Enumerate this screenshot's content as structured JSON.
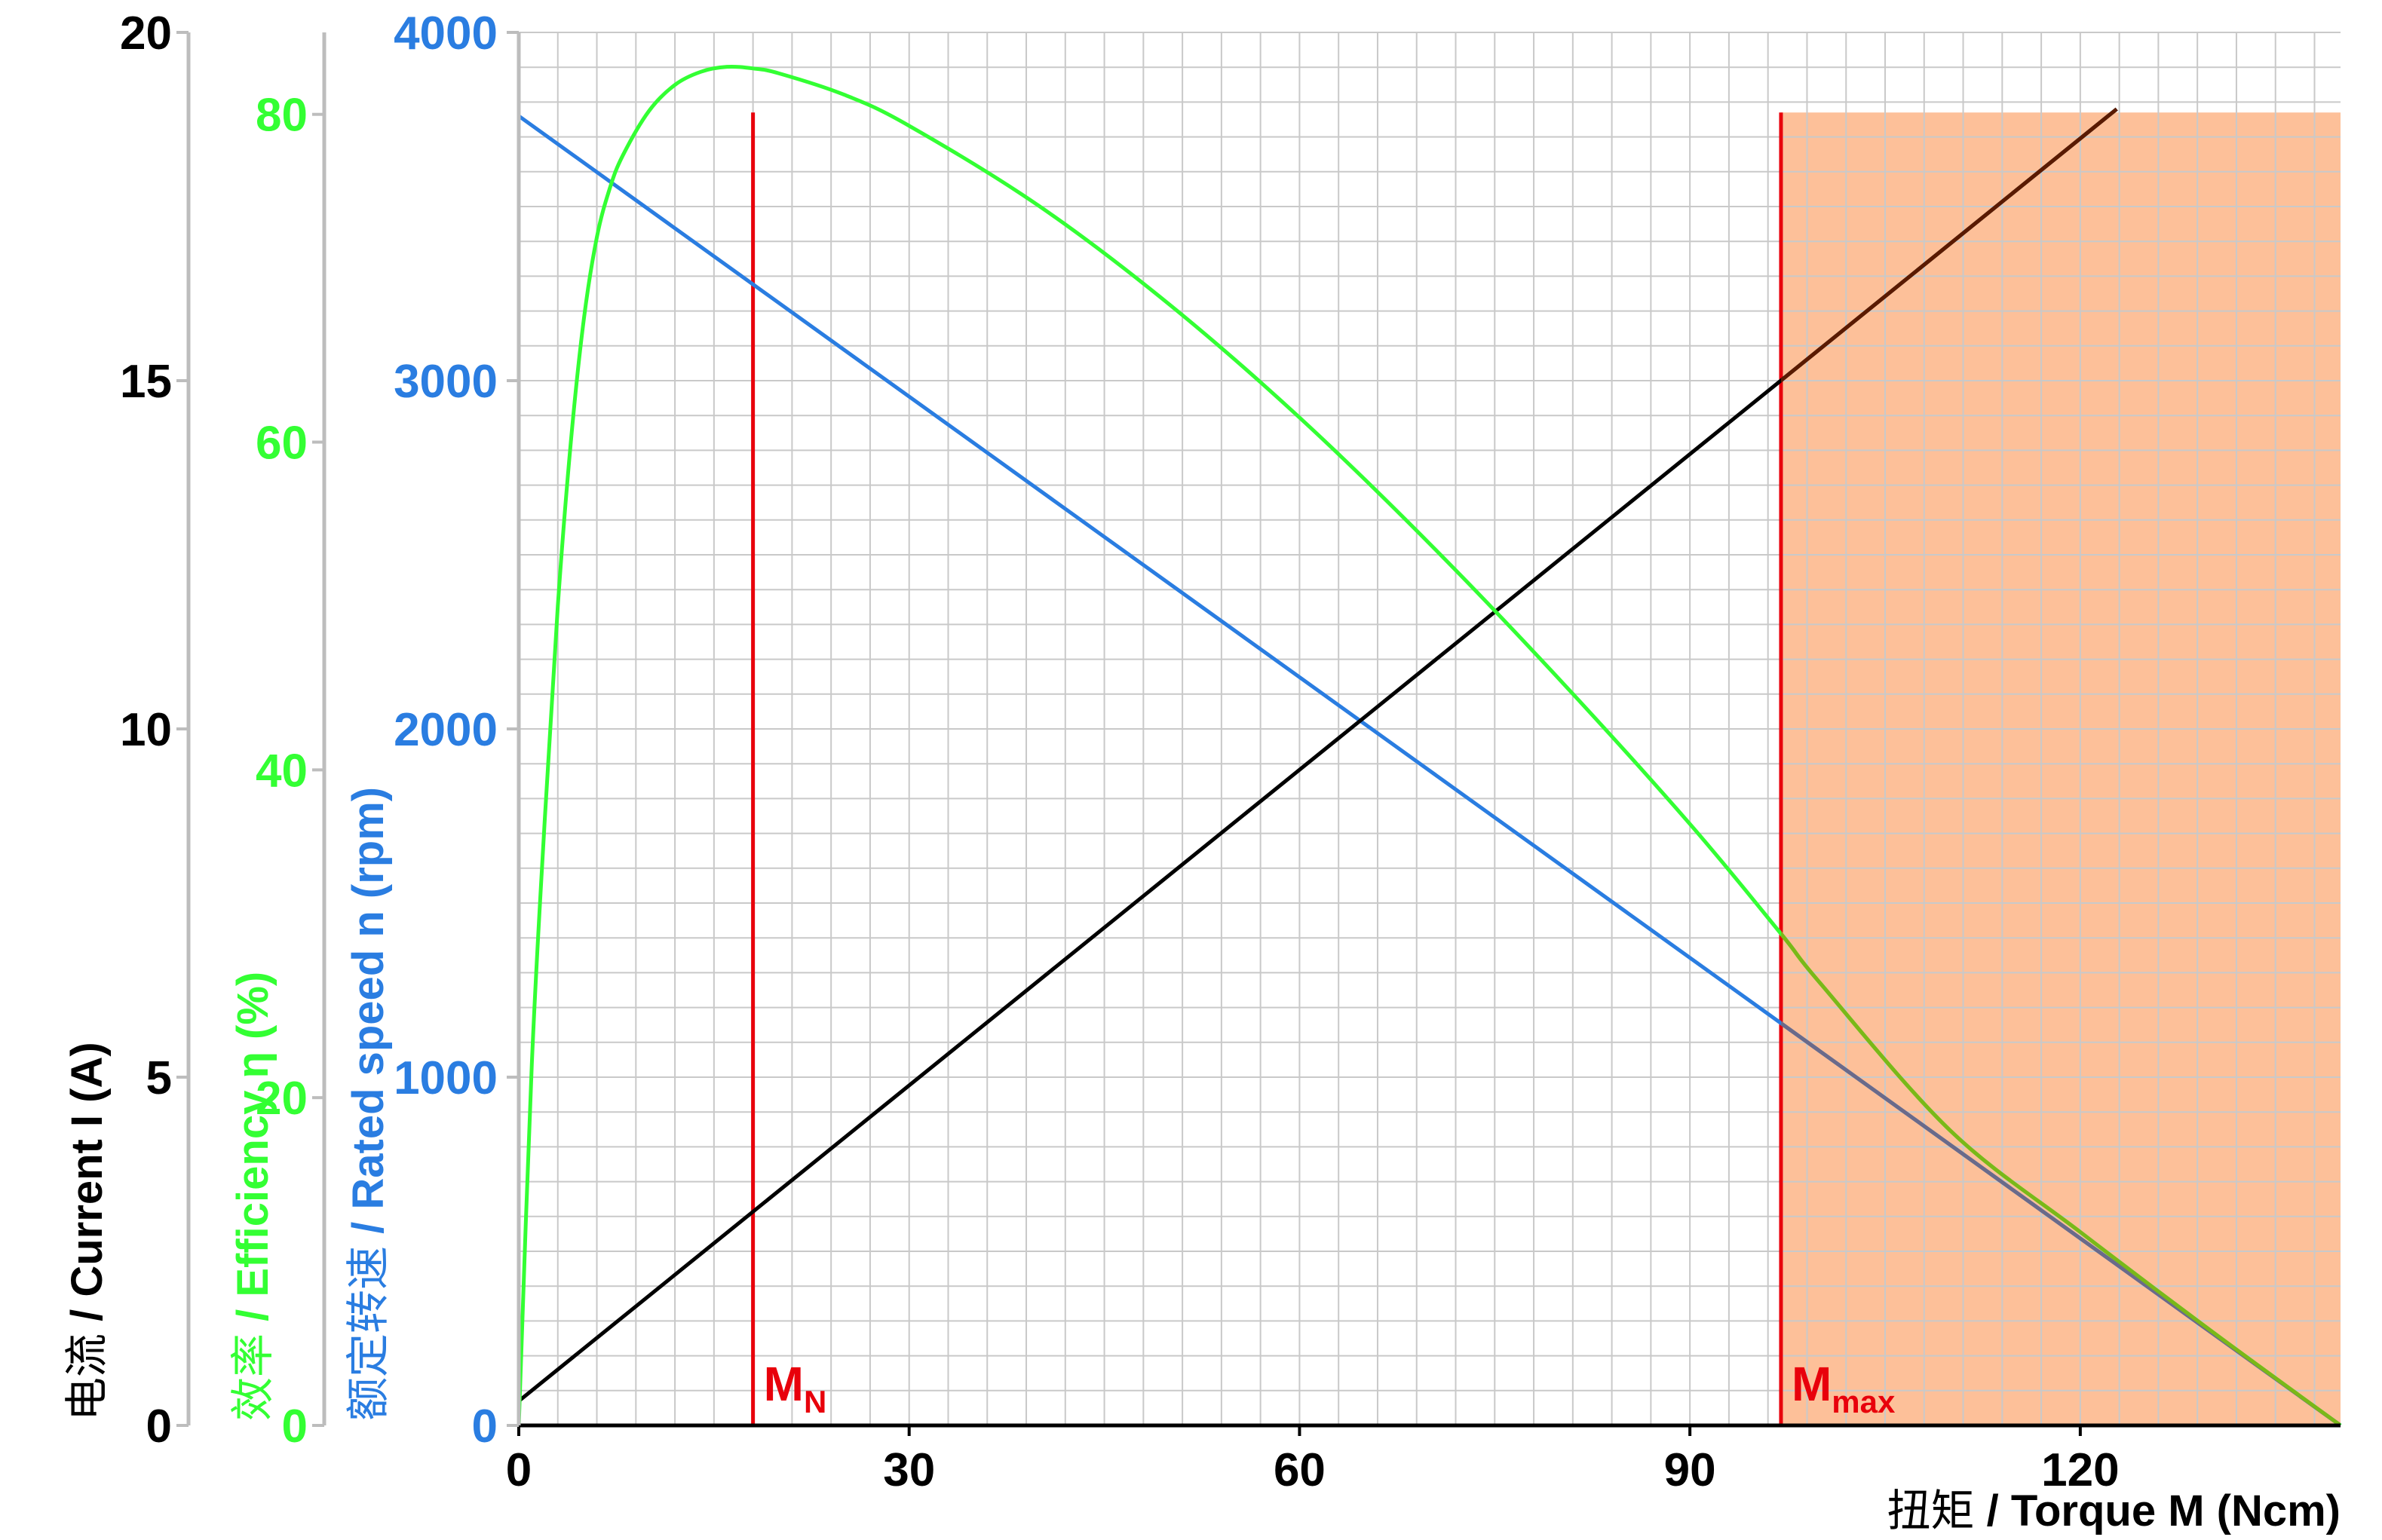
{
  "chart_data": {
    "type": "line",
    "x_axis": {
      "label_cn": "扭矩",
      "label_en": "Torque M (Ncm)",
      "range": [
        0,
        140
      ],
      "ticks": [
        0,
        30,
        60,
        90,
        120
      ],
      "minor_step": 3
    },
    "y_axes": [
      {
        "id": "current",
        "label_cn": "电流",
        "label_en": "Current I (A)",
        "range": [
          0,
          20
        ],
        "ticks": [
          0,
          5,
          10,
          15,
          20
        ],
        "color": "#000000"
      },
      {
        "id": "efficiency",
        "label_cn": "效率",
        "label_en": "Efficiency η   (%)",
        "range": [
          0,
          85
        ],
        "ticks": [
          0,
          20,
          40,
          60,
          80
        ],
        "color": "#33ff33"
      },
      {
        "id": "speed",
        "label_cn": "额定转速",
        "label_en": "Rated speed n (rpm)",
        "range": [
          0,
          4000
        ],
        "ticks": [
          0,
          1000,
          2000,
          3000,
          4000
        ],
        "color": "#2a7de1"
      }
    ],
    "series": [
      {
        "id": "speed",
        "axis": "speed",
        "color": "#2a7de1",
        "x": [
          0,
          140
        ],
        "y": [
          3760,
          0
        ]
      },
      {
        "id": "current",
        "axis": "current",
        "color": "#000000",
        "x": [
          0,
          122.8
        ],
        "y": [
          0.35,
          18.9
        ]
      },
      {
        "id": "efficiency",
        "axis": "efficiency",
        "color": "#33ff33",
        "x": [
          0,
          1,
          2,
          3,
          4,
          5,
          6,
          7,
          8,
          10,
          12,
          14,
          16,
          18,
          20,
          25,
          30,
          40,
          50,
          60,
          70,
          80,
          90,
          97,
          100,
          110,
          120,
          130,
          140
        ],
        "y": [
          0,
          22,
          37,
          50,
          60,
          67.5,
          72.5,
          75.5,
          77.5,
          80.2,
          81.8,
          82.6,
          82.9,
          82.8,
          82.5,
          81.2,
          79.3,
          74.4,
          68.4,
          61.5,
          53.8,
          45.5,
          36.7,
          30.0,
          27.0,
          18.0,
          11.8,
          5.8,
          0
        ]
      }
    ],
    "markers": [
      {
        "id": "rated-torque",
        "x": 18,
        "label": "M",
        "sub": "N",
        "color": "#e8000b",
        "top_speed": 3770
      },
      {
        "id": "max-torque",
        "x": 97,
        "label": "M",
        "sub": "max",
        "color": "#e8000b",
        "top_speed": 3770
      }
    ],
    "shaded_region": {
      "x": [
        97,
        140
      ],
      "top_speed": 3770,
      "color": "#fdbd94"
    }
  }
}
